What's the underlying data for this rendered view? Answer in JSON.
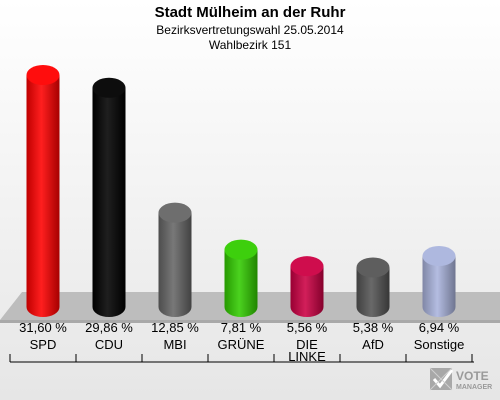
{
  "chart_data": {
    "type": "bar",
    "title": "Stadt Mülheim an der Ruhr",
    "subtitle": "Bezirksvertretungswahl 25.05.2014",
    "subtitle2": "Wahlbezirk 151",
    "categories": [
      "SPD",
      "CDU",
      "MBI",
      "GRÜNE",
      "DIE LINKE",
      "AfD",
      "Sonstige"
    ],
    "category_lines": [
      [
        "SPD"
      ],
      [
        "CDU"
      ],
      [
        "MBI"
      ],
      [
        "GRÜNE"
      ],
      [
        "DIE",
        "LINKE"
      ],
      [
        "AfD"
      ],
      [
        "Sonstige"
      ]
    ],
    "values": [
      31.6,
      29.86,
      12.85,
      7.81,
      5.56,
      5.38,
      6.94
    ],
    "value_labels": [
      "31,60 %",
      "29,86 %",
      "12,85 %",
      "7,81 %",
      "5,56 %",
      "5,38 %",
      "6,94 %"
    ],
    "colors": [
      "#ff0000",
      "#000000",
      "#666666",
      "#33cc00",
      "#cc0044",
      "#555555",
      "#aab4dd"
    ],
    "ylim": [
      0,
      31.6
    ],
    "grid": false
  },
  "logo": {
    "line1": "VOTE",
    "line2": "MANAGER"
  }
}
